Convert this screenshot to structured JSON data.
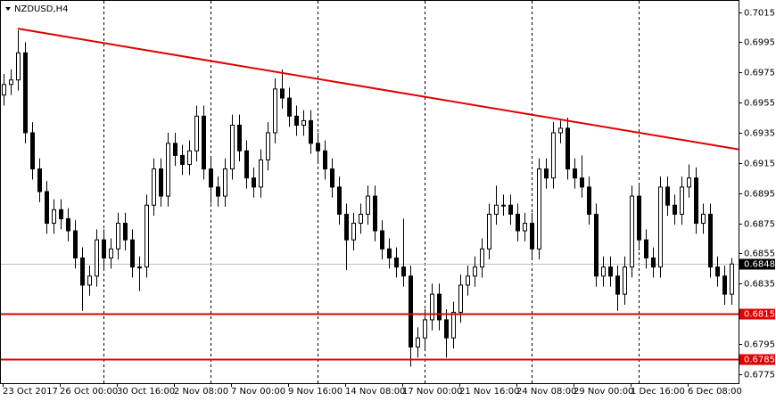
{
  "chart_data": {
    "type": "candlestick",
    "title": "NZDUSD,H4",
    "ylim": [
      0.6769,
      0.7023
    ],
    "yticks": [
      0.7015,
      0.6995,
      0.6975,
      0.6955,
      0.6935,
      0.6915,
      0.6895,
      0.6875,
      0.6855,
      0.6835,
      0.6795,
      0.6775
    ],
    "xlabels": [
      "23 Oct 2017",
      "26 Oct 00:00",
      "30 Oct 16:00",
      "2 Nov 08:00",
      "7 Nov 00:00",
      "9 Nov 16:00",
      "14 Nov 08:00",
      "17 Nov 00:00",
      "21 Nov 16:00",
      "24 Nov 08:00",
      "29 Nov 00:00",
      "1 Dec 16:00",
      "6 Dec 08:00"
    ],
    "open": [
      0.696,
      0.6967,
      0.697,
      0.6988,
      0.6935,
      0.6911,
      0.6896,
      0.6875,
      0.6884,
      0.6878,
      0.687,
      0.6852,
      0.6834,
      0.684,
      0.6864,
      0.6852,
      0.6858,
      0.6875,
      0.6864,
      0.6846,
      0.6846,
      0.6887,
      0.6911,
      0.6893,
      0.6928,
      0.692,
      0.6914,
      0.6923,
      0.6946,
      0.6911,
      0.6899,
      0.6893,
      0.6911,
      0.694,
      0.6923,
      0.6905,
      0.6899,
      0.6917,
      0.6935,
      0.6964,
      0.6958,
      0.6946,
      0.694,
      0.6943,
      0.6928,
      0.6923,
      0.6911,
      0.6899,
      0.6881,
      0.6864,
      0.6875,
      0.6881,
      0.6893,
      0.687,
      0.6858,
      0.6852,
      0.6846,
      0.684,
      0.6793,
      0.6799,
      0.6811,
      0.6828,
      0.6811,
      0.6799,
      0.6816,
      0.6834,
      0.684,
      0.6846,
      0.6858,
      0.6881,
      0.6887,
      0.6887,
      0.6881,
      0.687,
      0.6875,
      0.6858,
      0.6911,
      0.6905,
      0.6935,
      0.6938,
      0.6911,
      0.6905,
      0.6899,
      0.6881,
      0.684,
      0.6846,
      0.684,
      0.6828,
      0.6846,
      0.6893,
      0.6864,
      0.6852,
      0.6846,
      0.6899,
      0.6887,
      0.6881,
      0.6899,
      0.6905,
      0.6875,
      0.6881,
      0.6846,
      0.684,
      0.6828
    ],
    "high": [
      0.6974,
      0.6977,
      0.7003,
      0.6995,
      0.6942,
      0.6918,
      0.6903,
      0.6891,
      0.6891,
      0.6885,
      0.6877,
      0.6859,
      0.6847,
      0.6871,
      0.6871,
      0.6865,
      0.6882,
      0.6882,
      0.6871,
      0.6853,
      0.6894,
      0.6918,
      0.6918,
      0.6935,
      0.6935,
      0.6927,
      0.693,
      0.6953,
      0.6953,
      0.6918,
      0.6906,
      0.6918,
      0.6947,
      0.6947,
      0.693,
      0.6912,
      0.6924,
      0.6942,
      0.6971,
      0.6977,
      0.6965,
      0.6953,
      0.695,
      0.695,
      0.6935,
      0.693,
      0.6918,
      0.6906,
      0.6888,
      0.6882,
      0.6888,
      0.69,
      0.69,
      0.6877,
      0.6865,
      0.6859,
      0.6878,
      0.6847,
      0.6806,
      0.6818,
      0.6835,
      0.6835,
      0.6818,
      0.6823,
      0.6841,
      0.6847,
      0.6853,
      0.6865,
      0.6888,
      0.69,
      0.6894,
      0.6894,
      0.6888,
      0.6882,
      0.6882,
      0.6918,
      0.6918,
      0.6942,
      0.6943,
      0.6945,
      0.6918,
      0.692,
      0.6906,
      0.6888,
      0.6853,
      0.6853,
      0.6847,
      0.6853,
      0.69,
      0.69,
      0.6871,
      0.6859,
      0.6906,
      0.6906,
      0.6894,
      0.6906,
      0.6914,
      0.6912,
      0.6888,
      0.6888,
      0.6853,
      0.6847,
      0.6852
    ],
    "low": [
      0.6953,
      0.696,
      0.6963,
      0.6928,
      0.6904,
      0.6889,
      0.6868,
      0.6868,
      0.6871,
      0.6863,
      0.6845,
      0.6817,
      0.6827,
      0.6833,
      0.6845,
      0.6845,
      0.6851,
      0.6857,
      0.6839,
      0.683,
      0.6839,
      0.688,
      0.6886,
      0.6886,
      0.6913,
      0.6907,
      0.6907,
      0.6916,
      0.6904,
      0.6888,
      0.6886,
      0.6886,
      0.6904,
      0.6916,
      0.6898,
      0.6892,
      0.6892,
      0.691,
      0.6928,
      0.6951,
      0.6939,
      0.6933,
      0.6933,
      0.6921,
      0.6916,
      0.6904,
      0.6892,
      0.6874,
      0.6844,
      0.6857,
      0.6868,
      0.6874,
      0.6863,
      0.6851,
      0.6845,
      0.6839,
      0.6833,
      0.678,
      0.6786,
      0.6792,
      0.6804,
      0.6804,
      0.6786,
      0.6792,
      0.6809,
      0.6827,
      0.6833,
      0.6839,
      0.6851,
      0.6874,
      0.688,
      0.6874,
      0.6863,
      0.6863,
      0.6851,
      0.6851,
      0.6898,
      0.6898,
      0.6928,
      0.6904,
      0.6898,
      0.6892,
      0.6874,
      0.6833,
      0.6833,
      0.6833,
      0.6817,
      0.6821,
      0.6839,
      0.6857,
      0.6845,
      0.6839,
      0.6839,
      0.688,
      0.6874,
      0.6874,
      0.6892,
      0.6868,
      0.6868,
      0.6839,
      0.6833,
      0.6821,
      0.6821
    ],
    "close": [
      0.6967,
      0.697,
      0.6988,
      0.6935,
      0.6911,
      0.6896,
      0.6875,
      0.6884,
      0.6878,
      0.687,
      0.6852,
      0.6834,
      0.684,
      0.6864,
      0.6852,
      0.6858,
      0.6875,
      0.6864,
      0.6846,
      0.6846,
      0.6887,
      0.6911,
      0.6893,
      0.6928,
      0.692,
      0.6914,
      0.6923,
      0.6946,
      0.6911,
      0.6899,
      0.6893,
      0.6911,
      0.694,
      0.6923,
      0.6905,
      0.6899,
      0.6917,
      0.6935,
      0.6964,
      0.6958,
      0.6946,
      0.694,
      0.6943,
      0.6928,
      0.6923,
      0.6911,
      0.6899,
      0.6881,
      0.6864,
      0.6875,
      0.6881,
      0.6893,
      0.687,
      0.6858,
      0.6852,
      0.6846,
      0.684,
      0.6793,
      0.6799,
      0.6811,
      0.6828,
      0.6811,
      0.6799,
      0.6816,
      0.6834,
      0.684,
      0.6846,
      0.6858,
      0.6881,
      0.6887,
      0.6887,
      0.6881,
      0.687,
      0.6875,
      0.6858,
      0.6911,
      0.6905,
      0.6935,
      0.6938,
      0.6911,
      0.6905,
      0.6899,
      0.6881,
      0.684,
      0.6846,
      0.684,
      0.6828,
      0.6846,
      0.6893,
      0.6864,
      0.6852,
      0.6846,
      0.6899,
      0.6887,
      0.6881,
      0.6899,
      0.6905,
      0.6875,
      0.6881,
      0.6846,
      0.684,
      0.6828,
      0.6848
    ],
    "trendline": {
      "start": [
        2,
        0.7004
      ],
      "end": [
        103,
        0.6924
      ],
      "color": "#e00000"
    },
    "hlines": [
      {
        "value": 0.6815,
        "color": "#e00000"
      },
      {
        "value": 0.6785,
        "color": "#e00000"
      }
    ],
    "last_price": 0.6848
  }
}
